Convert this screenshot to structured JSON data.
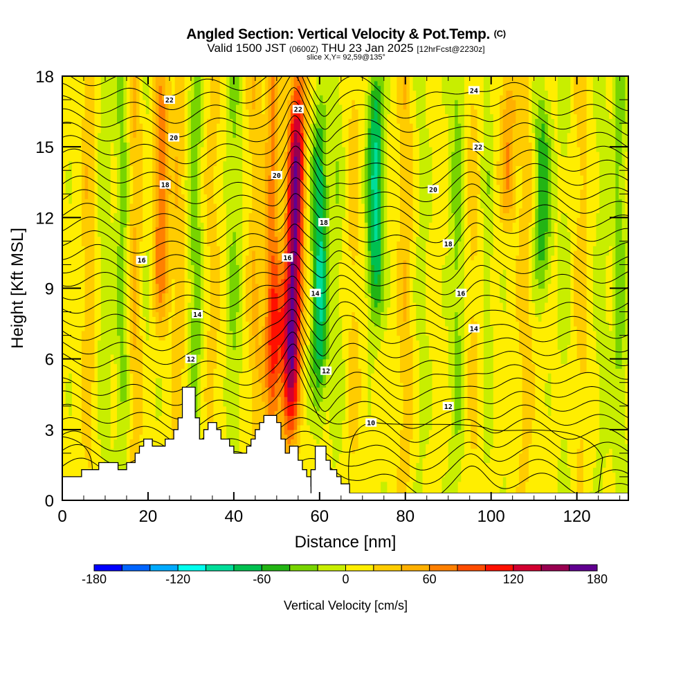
{
  "header": {
    "title": "Angled Section: Vertical Velocity & Pot.Temp.",
    "title_unit": "(C)",
    "valid_prefix": "Valid 1500 JST",
    "valid_utc": "(0600Z)",
    "valid_date": "THU 23 Jan 2025",
    "forecast": "[12hrFcst@2230z]",
    "slice": "slice X,Y= 92,59@135°"
  },
  "chart_data": {
    "type": "heatmap",
    "title": "Angled Section: Vertical Velocity & Pot.Temp. (C)",
    "subtitle": "Valid 1500 JST (0600Z) THU 23 Jan 2025 [12hrFcst@2230z] slice X,Y= 92,59@135°",
    "xlabel": "Distance [nm]",
    "ylabel": "Height [Kft MSL]",
    "xlim": [
      0,
      132
    ],
    "ylim": [
      0,
      18
    ],
    "x_ticks": [
      0,
      20,
      40,
      60,
      80,
      100,
      120
    ],
    "x_tick_labels": [
      "0",
      "20",
      "40",
      "60",
      "80",
      "100",
      "120"
    ],
    "y_ticks": [
      0,
      3,
      6,
      9,
      12,
      15,
      18
    ],
    "y_tick_labels": [
      "0",
      "3",
      "6",
      "9",
      "12",
      "15",
      "18"
    ],
    "colorbar": {
      "label": "Vertical Velocity [cm/s]",
      "min": -180,
      "max": 180,
      "step": 20,
      "tick_values": [
        -180,
        -120,
        -60,
        0,
        60,
        120,
        180
      ],
      "tick_labels": [
        "-180",
        "-120",
        "-60",
        "0",
        "60",
        "120",
        "180"
      ],
      "colors": [
        "#0000ff",
        "#0064ff",
        "#00aaff",
        "#00ffee",
        "#00dd99",
        "#00c050",
        "#22b414",
        "#78d400",
        "#c8ee00",
        "#ffee00",
        "#ffcc00",
        "#ffb000",
        "#ff8000",
        "#ff4c00",
        "#ff1000",
        "#d20030",
        "#980050",
        "#600090"
      ]
    },
    "features": [
      {
        "name": "strong updraft core",
        "x": 54,
        "y_range": [
          3.5,
          17.5
        ],
        "max_value": 160
      },
      {
        "name": "downdraft band",
        "x": 60,
        "y_range": [
          4.5,
          16
        ],
        "min_value": -90
      },
      {
        "name": "downdraft band",
        "x": 73,
        "y_range": [
          8,
          18
        ],
        "min_value": -90
      },
      {
        "name": "downdraft band",
        "x": 112,
        "y_range": [
          9,
          17
        ],
        "min_value": -60
      },
      {
        "name": "updraft band",
        "x": 23,
        "y_range": [
          8,
          18
        ],
        "max_value": 70
      },
      {
        "name": "updraft band",
        "x": 104,
        "y_range": [
          12,
          18
        ],
        "max_value": 50
      }
    ],
    "pot_temp_contours": {
      "units": "C",
      "interval": 1,
      "labeled_levels": [
        10,
        12,
        14,
        16,
        18,
        20,
        22,
        24
      ],
      "labels": [
        {
          "level": 22,
          "x": 25,
          "y": 17.0
        },
        {
          "level": 20,
          "x": 26,
          "y": 15.4
        },
        {
          "level": 18,
          "x": 24,
          "y": 13.4
        },
        {
          "level": 16,
          "x": 18.5,
          "y": 10.2
        },
        {
          "level": 14,
          "x": 31.5,
          "y": 7.9
        },
        {
          "level": 12,
          "x": 30,
          "y": 6.0
        },
        {
          "level": 22,
          "x": 55,
          "y": 16.6
        },
        {
          "level": 20,
          "x": 50,
          "y": 13.8
        },
        {
          "level": 18,
          "x": 61,
          "y": 11.8
        },
        {
          "level": 16,
          "x": 52.5,
          "y": 10.3
        },
        {
          "level": 14,
          "x": 59,
          "y": 8.8
        },
        {
          "level": 12,
          "x": 61.5,
          "y": 5.5
        },
        {
          "level": 10,
          "x": 72,
          "y": 3.3
        },
        {
          "level": 24,
          "x": 96,
          "y": 17.4
        },
        {
          "level": 22,
          "x": 97,
          "y": 15.0
        },
        {
          "level": 20,
          "x": 86.5,
          "y": 13.2
        },
        {
          "level": 18,
          "x": 90,
          "y": 10.9
        },
        {
          "level": 16,
          "x": 93,
          "y": 8.8
        },
        {
          "level": 14,
          "x": 96,
          "y": 7.3
        },
        {
          "level": 12,
          "x": 90,
          "y": 4.0
        }
      ]
    },
    "terrain": {
      "description": "white stepped terrain silhouette",
      "profile": [
        [
          0,
          1.0
        ],
        [
          4.5,
          1.0
        ],
        [
          4.5,
          1.3
        ],
        [
          8.5,
          1.3
        ],
        [
          8.5,
          1.6
        ],
        [
          13,
          1.6
        ],
        [
          13,
          1.3
        ],
        [
          15,
          1.3
        ],
        [
          15,
          1.6
        ],
        [
          17,
          1.6
        ],
        [
          17,
          2.0
        ],
        [
          18,
          2.0
        ],
        [
          18,
          2.3
        ],
        [
          19,
          2.3
        ],
        [
          19,
          2.6
        ],
        [
          21,
          2.6
        ],
        [
          21,
          2.3
        ],
        [
          24,
          2.3
        ],
        [
          24,
          2.6
        ],
        [
          26,
          2.6
        ],
        [
          26,
          3.0
        ],
        [
          27,
          3.0
        ],
        [
          27,
          3.5
        ],
        [
          28,
          3.5
        ],
        [
          28,
          4.8
        ],
        [
          31,
          4.8
        ],
        [
          31,
          3.5
        ],
        [
          32,
          3.5
        ],
        [
          32,
          2.6
        ],
        [
          33,
          2.6
        ],
        [
          33,
          3.0
        ],
        [
          34,
          3.0
        ],
        [
          34,
          3.3
        ],
        [
          36,
          3.3
        ],
        [
          36,
          3.0
        ],
        [
          37,
          3.0
        ],
        [
          37,
          2.6
        ],
        [
          39,
          2.6
        ],
        [
          39,
          2.3
        ],
        [
          40,
          2.3
        ],
        [
          40,
          2.0
        ],
        [
          43,
          2.0
        ],
        [
          43,
          2.3
        ],
        [
          44,
          2.3
        ],
        [
          44,
          2.6
        ],
        [
          45,
          2.6
        ],
        [
          45,
          3.0
        ],
        [
          46,
          3.0
        ],
        [
          46,
          3.3
        ],
        [
          47,
          3.3
        ],
        [
          47,
          3.6
        ],
        [
          50,
          3.6
        ],
        [
          50,
          3.3
        ],
        [
          51,
          3.3
        ],
        [
          51,
          2.6
        ],
        [
          52,
          2.6
        ],
        [
          52,
          2.0
        ],
        [
          53,
          2.0
        ],
        [
          53,
          2.3
        ],
        [
          55,
          2.3
        ],
        [
          55,
          1.7
        ],
        [
          56,
          1.7
        ],
        [
          56,
          1.3
        ],
        [
          57,
          1.3
        ],
        [
          57,
          1.0
        ],
        [
          58,
          1.0
        ],
        [
          58,
          0.6
        ],
        [
          59,
          0.6
        ],
        [
          59,
          0.3
        ],
        [
          60.5,
          0.3
        ],
        [
          60.5,
          0
        ]
      ],
      "profile_note": "second ridge",
      "profile2": [
        [
          58,
          1.3
        ],
        [
          59,
          1.3
        ],
        [
          59,
          2.3
        ],
        [
          61.5,
          2.3
        ],
        [
          61.5,
          1.7
        ],
        [
          62.5,
          1.7
        ],
        [
          62.5,
          1.3
        ],
        [
          64,
          1.3
        ],
        [
          64,
          1.0
        ],
        [
          65,
          1.0
        ],
        [
          65,
          0.7
        ],
        [
          67,
          0.7
        ],
        [
          67,
          0.3
        ],
        [
          72,
          0.3
        ]
      ]
    }
  }
}
